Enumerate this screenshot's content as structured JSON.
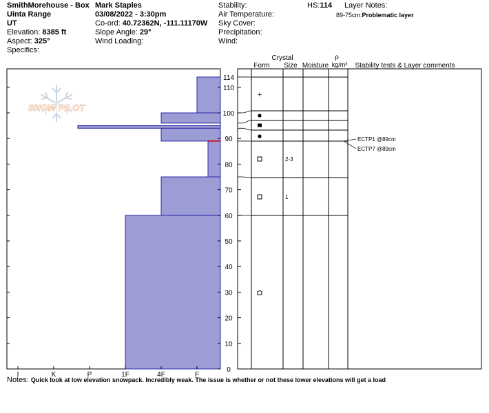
{
  "header": {
    "location": "SmithMorehouse - Box",
    "range": "Uinta Range",
    "state": "UT",
    "elevation_label": "Elevation:",
    "elevation_value": "8385 ft",
    "aspect_label": "Aspect:",
    "aspect_value": "325°",
    "specifics_label": "Specifics:",
    "observer": "Mark Staples",
    "datetime": "03/08/2022 - 3:30pm",
    "coord_label": "Co-ord:",
    "coord_value": "40.72362N, -111.11170W",
    "slope_label": "Slope Angle:",
    "slope_value": "29°",
    "wind_loading_label": "Wind Loading:",
    "stability_label": "Stability:",
    "air_temp_label": "Air Temperature:",
    "sky_cover_label": "Sky Cover:",
    "precip_label": "Precipitation:",
    "wind_label": "Wind:",
    "hs_label": "HS:",
    "hs_value": "114",
    "layer_notes_label": "Layer Notes:",
    "layer_note_range": "89-75cm:",
    "layer_note_text": "Problematic layer"
  },
  "columns": {
    "crystal": "Crystal",
    "form": "Form",
    "size": "Size",
    "moisture": "Moisture",
    "rho": "ρ",
    "density_unit": "kg/m³",
    "stability": "Stability tests & Layer comments"
  },
  "logo_text": "SNOW PILOT",
  "notes_label": "Notes:",
  "notes_text": "Quick look at low elevation snowpack. Incredibly weak. The issue is whether or not these lower elevations will get a load",
  "colors": {
    "hardness_fill": "#9d9dd6",
    "hardness_stroke": "#2727a8",
    "problem_layer": "#cc0000"
  },
  "chart_data": {
    "type": "snow-profile",
    "y_axis": {
      "min": 0,
      "max": 114,
      "ticks": [
        0,
        10,
        20,
        30,
        40,
        50,
        60,
        70,
        80,
        90,
        100,
        110
      ],
      "top_label": "114"
    },
    "hardness_scale": [
      "I",
      "K",
      "P",
      "1F",
      "4F",
      "F"
    ],
    "hardness_layers": [
      {
        "top": 114,
        "bottom": 100,
        "hardness": "F"
      },
      {
        "top": 100,
        "bottom": 96,
        "hardness": "4F"
      },
      {
        "top": 95,
        "bottom": 94,
        "hardness": "K+"
      },
      {
        "top": 94,
        "bottom": 89,
        "hardness": "4F"
      },
      {
        "top": 89,
        "bottom": 75,
        "hardness": "F-"
      },
      {
        "top": 75,
        "bottom": 60,
        "hardness": "4F"
      },
      {
        "top": 60,
        "bottom": 0,
        "hardness": "1F"
      }
    ],
    "layer_boundaries": [
      114,
      100,
      96,
      94,
      89,
      75,
      60
    ],
    "crystal_forms": [
      {
        "depth": 107,
        "symbol": "+",
        "size": ""
      },
      {
        "depth": 98,
        "symbol": "●",
        "size": ""
      },
      {
        "depth": 95,
        "symbol": "■",
        "size": ""
      },
      {
        "depth": 91,
        "symbol": "●",
        "size": ""
      },
      {
        "depth": 82,
        "symbol": "□",
        "size": "2-3"
      },
      {
        "depth": 67,
        "symbol": "□",
        "size": "1"
      },
      {
        "depth": 30,
        "symbol": "^",
        "size": ""
      }
    ],
    "stability_tests": [
      {
        "depth": 89,
        "label": "ECTP1 @89cm"
      },
      {
        "depth": 89,
        "label": "ECTP7 @89cm"
      }
    ]
  }
}
